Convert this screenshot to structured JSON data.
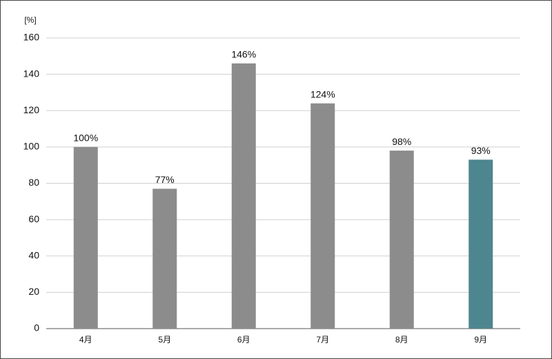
{
  "chart_data": {
    "type": "bar",
    "ylabel": "[%]",
    "categories": [
      "4月",
      "5月",
      "6月",
      "7月",
      "8月",
      "9月"
    ],
    "values": [
      100,
      77,
      146,
      124,
      98,
      93
    ],
    "value_labels": [
      "100%",
      "77%",
      "146%",
      "124%",
      "98%",
      "93%"
    ],
    "colors": [
      "#8c8c8c",
      "#8c8c8c",
      "#8c8c8c",
      "#8c8c8c",
      "#8c8c8c",
      "#4e8690"
    ],
    "ylim": [
      0,
      160
    ],
    "yticks": [
      0,
      20,
      40,
      60,
      80,
      100,
      120,
      140,
      160
    ],
    "grid": true
  }
}
